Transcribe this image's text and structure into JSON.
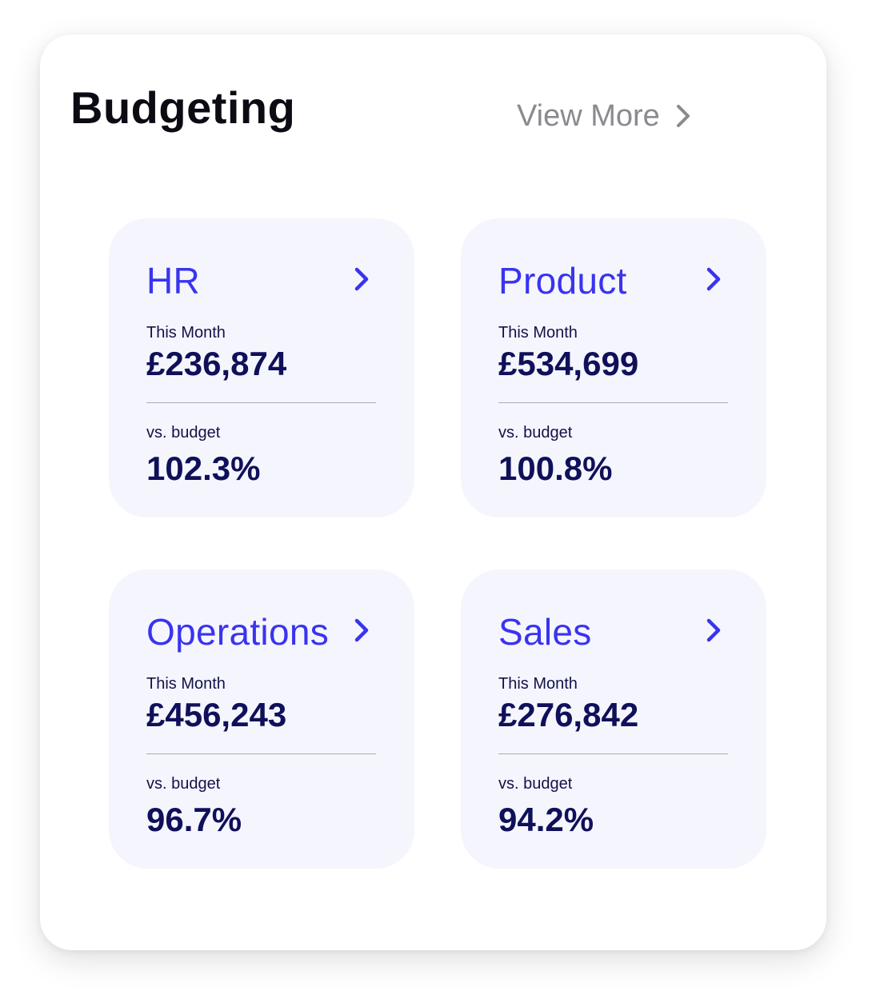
{
  "header": {
    "title": "Budgeting",
    "view_more_label": "View More"
  },
  "colors": {
    "accent": "#3a33f0",
    "value_text": "#10105a",
    "card_bg": "#f5f6fd",
    "muted": "#8a8a8f"
  },
  "cards": [
    {
      "name": "HR",
      "month_label": "This Month",
      "amount": "£236,874",
      "budget_label": "vs. budget",
      "percent": "102.3%",
      "icon": "chevron-right-icon"
    },
    {
      "name": "Product",
      "month_label": "This Month",
      "amount": "£534,699",
      "budget_label": "vs. budget",
      "percent": "100.8%",
      "icon": "chevron-right-icon"
    },
    {
      "name": "Operations",
      "month_label": "This Month",
      "amount": "£456,243",
      "budget_label": "vs. budget",
      "percent": "96.7%",
      "icon": "chevron-right-icon"
    },
    {
      "name": "Sales",
      "month_label": "This Month",
      "amount": "£276,842",
      "budget_label": "vs. budget",
      "percent": "94.2%",
      "icon": "chevron-right-icon"
    }
  ]
}
